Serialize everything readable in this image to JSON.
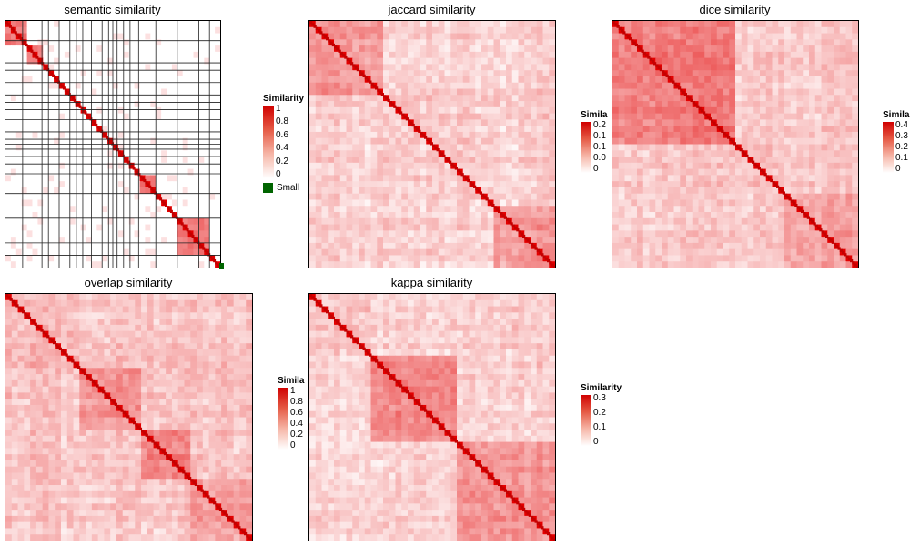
{
  "colors": {
    "low": "#ffffff",
    "high": "#e00000",
    "grid": "#222222",
    "small_cluster": "#006400"
  },
  "chart_data": [
    {
      "type": "heatmap",
      "title": "semantic similarity",
      "n": 120,
      "clustered": true,
      "legend": {
        "title": "Similarity",
        "ticks": [
          "1",
          "0.8",
          "0.6",
          "0.4",
          "0.2",
          "0"
        ],
        "extra_label": "Small"
      }
    },
    {
      "type": "heatmap",
      "title": "jaccard similarity",
      "n": 120,
      "legend": {
        "title": "Similarity",
        "ticks": [
          "0.2",
          "0.1",
          "0.1",
          "0.0",
          "0"
        ]
      }
    },
    {
      "type": "heatmap",
      "title": "dice similarity",
      "n": 120,
      "legend": {
        "title": "Similarity",
        "ticks": [
          "0.4",
          "0.3",
          "0.2",
          "0.1",
          "0"
        ]
      }
    },
    {
      "type": "heatmap",
      "title": "overlap similarity",
      "n": 120,
      "legend": {
        "title": "Similarity",
        "ticks": [
          "1",
          "0.8",
          "0.6",
          "0.4",
          "0.2",
          "0"
        ]
      }
    },
    {
      "type": "heatmap",
      "title": "kappa similarity",
      "n": 120,
      "legend": {
        "title": "Similarity",
        "ticks": [
          "0.3",
          "0.2",
          "0.1",
          "0"
        ]
      }
    }
  ]
}
